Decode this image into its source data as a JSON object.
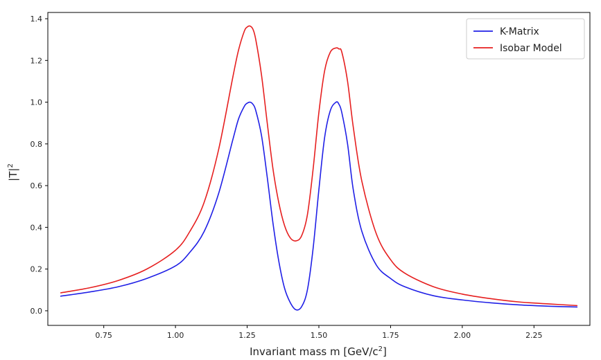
{
  "chart_data": {
    "type": "line",
    "title": "",
    "xlabel": "Invariant mass m [GeV/c",
    "xlabel_sup": "2",
    "xlabel_suffix": "]",
    "ylabel": "|T|",
    "ylabel_sup": "2",
    "xlim": [
      0.555,
      2.445
    ],
    "ylim": [
      -0.07,
      1.43
    ],
    "xticks": [
      0.75,
      1.0,
      1.25,
      1.5,
      1.75,
      2.0,
      2.25
    ],
    "xtick_labels": [
      "0.75",
      "1.00",
      "1.25",
      "1.50",
      "1.75",
      "2.00",
      "2.25"
    ],
    "yticks": [
      0.0,
      0.2,
      0.4,
      0.6,
      0.8,
      1.0,
      1.2,
      1.4
    ],
    "ytick_labels": [
      "0.0",
      "0.2",
      "0.4",
      "0.6",
      "0.8",
      "1.0",
      "1.2",
      "1.4"
    ],
    "grid": false,
    "legend_position": "top-right",
    "x": [
      0.6,
      0.7,
      0.8,
      0.9,
      1.0,
      1.05,
      1.1,
      1.15,
      1.2,
      1.22,
      1.24,
      1.25,
      1.26,
      1.27,
      1.28,
      1.3,
      1.32,
      1.34,
      1.36,
      1.38,
      1.4,
      1.42,
      1.44,
      1.46,
      1.48,
      1.5,
      1.52,
      1.54,
      1.56,
      1.57,
      1.58,
      1.6,
      1.62,
      1.65,
      1.7,
      1.75,
      1.8,
      1.9,
      2.0,
      2.1,
      2.2,
      2.3,
      2.4
    ],
    "series": [
      {
        "name": "K-Matrix",
        "color": "#1f1fe6",
        "values": [
          0.07,
          0.09,
          0.115,
          0.155,
          0.215,
          0.28,
          0.38,
          0.56,
          0.82,
          0.92,
          0.98,
          0.995,
          1.0,
          0.99,
          0.96,
          0.84,
          0.64,
          0.42,
          0.24,
          0.11,
          0.04,
          0.005,
          0.02,
          0.1,
          0.3,
          0.58,
          0.83,
          0.96,
          1.0,
          0.99,
          0.95,
          0.8,
          0.58,
          0.38,
          0.22,
          0.155,
          0.115,
          0.072,
          0.052,
          0.038,
          0.028,
          0.022,
          0.018
        ]
      },
      {
        "name": "Isobar Model",
        "color": "#e61f1f",
        "values": [
          0.086,
          0.11,
          0.145,
          0.2,
          0.29,
          0.38,
          0.52,
          0.77,
          1.12,
          1.25,
          1.34,
          1.36,
          1.365,
          1.35,
          1.3,
          1.13,
          0.9,
          0.68,
          0.52,
          0.41,
          0.35,
          0.335,
          0.36,
          0.46,
          0.68,
          0.95,
          1.15,
          1.24,
          1.26,
          1.255,
          1.24,
          1.1,
          0.88,
          0.62,
          0.37,
          0.245,
          0.18,
          0.115,
          0.08,
          0.058,
          0.042,
          0.033,
          0.025
        ]
      }
    ]
  }
}
